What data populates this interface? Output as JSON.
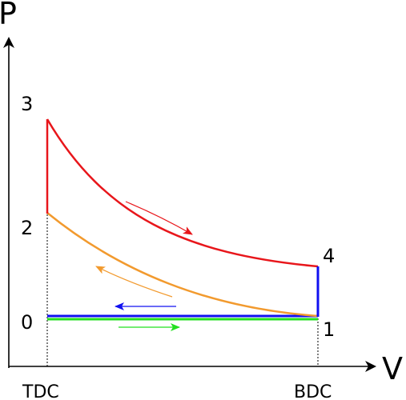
{
  "axes": {
    "y_label": "P",
    "x_label": "V"
  },
  "ticks": {
    "tdc": "TDC",
    "bdc": "BDC"
  },
  "points": {
    "p0": "0",
    "p1": "1",
    "p2": "2",
    "p3": "3",
    "p4": "4"
  },
  "colors": {
    "expansion": "#e8161b",
    "compression": "#f29a2e",
    "exhaust": "#1010f0",
    "intake": "#22e01f",
    "axis": "#000000"
  }
}
